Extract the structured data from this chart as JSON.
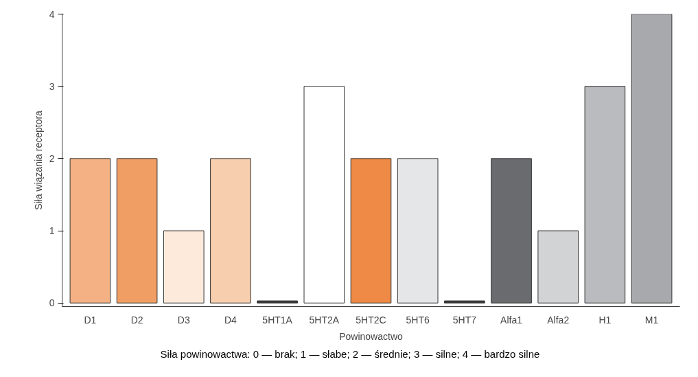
{
  "chart_data": {
    "type": "bar",
    "xlabel": "Powinowactwo",
    "ylabel": "Siła wiązania receptora",
    "categories": [
      "D1",
      "D2",
      "D3",
      "D4",
      "5HT1A",
      "5HT2A",
      "5HT2C",
      "5HT6",
      "5HT7",
      "Alfa1",
      "Alfa2",
      "H1",
      "M1"
    ],
    "values": [
      2,
      2,
      1,
      2,
      0.03,
      3,
      2,
      2,
      0.03,
      2,
      1,
      3,
      4
    ],
    "colors": [
      "#f4b183",
      "#f09e64",
      "#fdeadb",
      "#f8cfae",
      "#3a3a3a",
      "#ffffff",
      "#ee8a45",
      "#e5e6e8",
      "#3a3a3a",
      "#6a6b6f",
      "#d1d3d5",
      "#b9bbbe",
      "#a7a9ac"
    ],
    "ylim": [
      -0.05,
      4
    ],
    "yticks": [
      0,
      1,
      2,
      3,
      4
    ],
    "grid": false,
    "annotations": [
      "Siła powinowactwa: 0 — brak; 1 — słabe; 2 — średnie; 3 — silne; 4 — bardzo silne"
    ]
  }
}
